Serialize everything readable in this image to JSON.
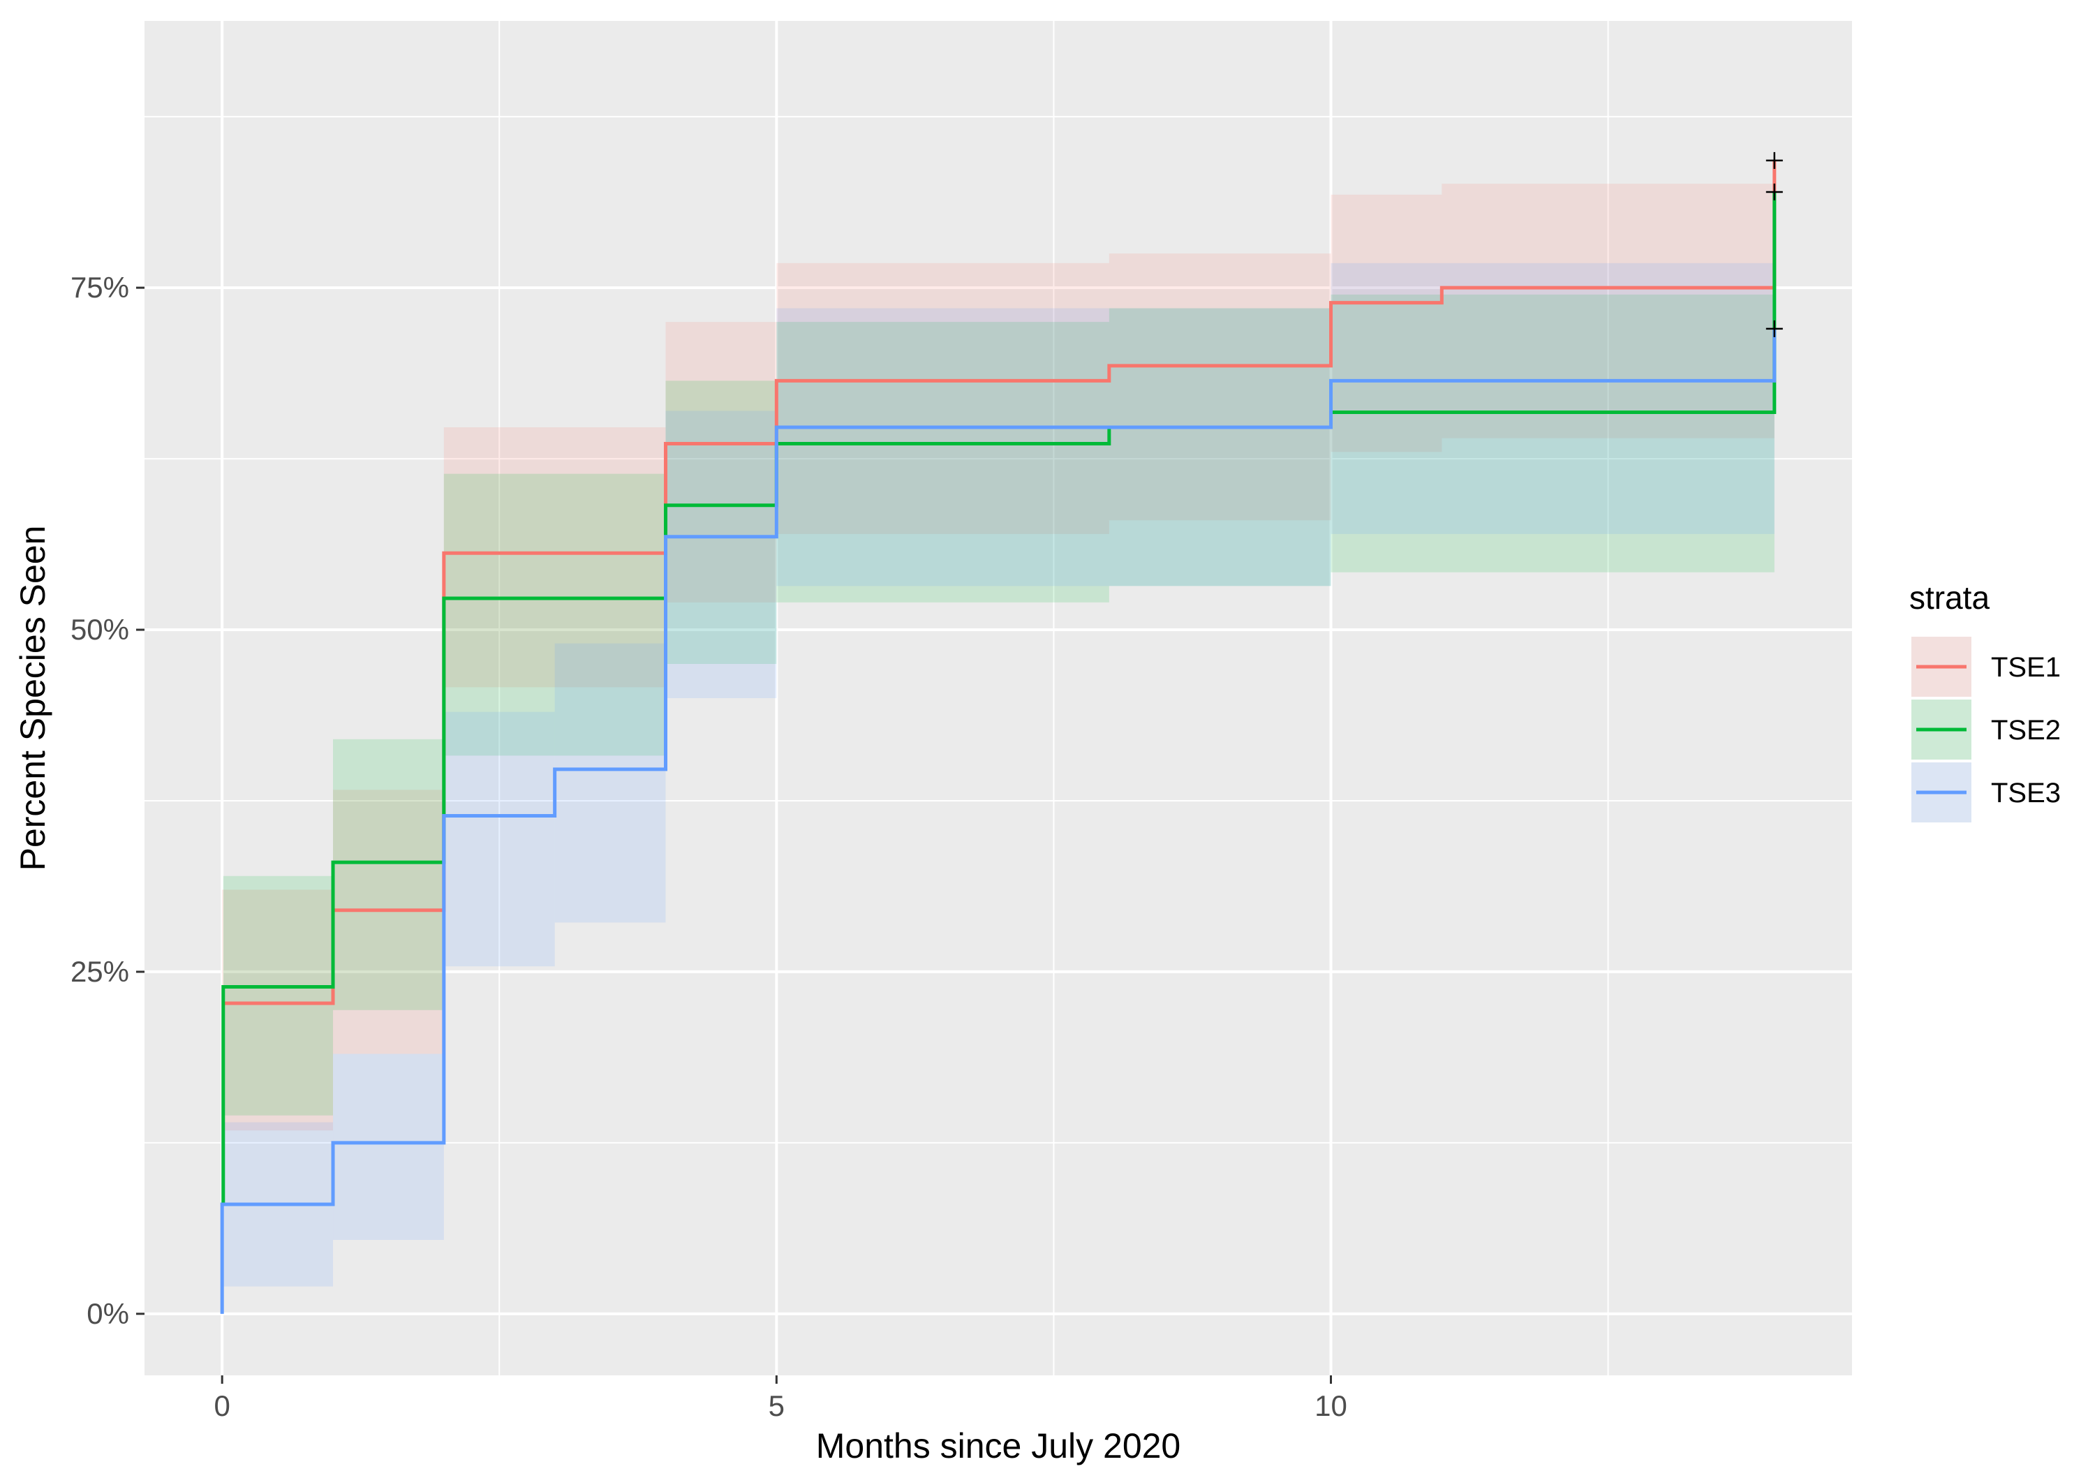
{
  "chart_data": {
    "type": "step",
    "title": "",
    "xlabel": "Months since July 2020",
    "ylabel": "Percent Species Seen",
    "xlim": [
      -0.7,
      14.7
    ],
    "ylim": [
      -0.045,
      0.945
    ],
    "x_ticks": [
      0,
      5,
      10
    ],
    "x_tick_labels": [
      "0",
      "5",
      "10"
    ],
    "x_minor_ticks": [
      2.5,
      7.5,
      12.5
    ],
    "y_ticks": [
      0,
      0.25,
      0.5,
      0.75
    ],
    "y_tick_labels": [
      "0%",
      "25%",
      "50%",
      "75%"
    ],
    "y_minor_ticks": [
      0.125,
      0.375,
      0.625,
      0.875
    ],
    "grid": true,
    "background": "#ebebeb",
    "legend": {
      "title": "strata",
      "position": "right"
    },
    "series": [
      {
        "name": "TSE1",
        "color": "#F8766D",
        "fill_opacity": 0.15,
        "steps": [
          {
            "x": 0,
            "y": 0.227,
            "lower": 0.134,
            "upper": 0.31
          },
          {
            "x": 1,
            "y": 0.295,
            "lower": 0.19,
            "upper": 0.383
          },
          {
            "x": 2,
            "y": 0.556,
            "lower": 0.458,
            "upper": 0.648
          },
          {
            "x": 4,
            "y": 0.636,
            "lower": 0.52,
            "upper": 0.725
          },
          {
            "x": 5,
            "y": 0.682,
            "lower": 0.57,
            "upper": 0.768
          },
          {
            "x": 8,
            "y": 0.693,
            "lower": 0.58,
            "upper": 0.775
          },
          {
            "x": 10,
            "y": 0.739,
            "lower": 0.63,
            "upper": 0.818
          },
          {
            "x": 11,
            "y": 0.75,
            "lower": 0.64,
            "upper": 0.826
          }
        ],
        "end_x": 14,
        "end_y": 0.843,
        "censor_y": 0.843
      },
      {
        "name": "TSE2",
        "color": "#00BA38",
        "fill_opacity": 0.15,
        "steps": [
          {
            "x": 0,
            "y": 0.08,
            "lower": 0.02,
            "upper": 0.15
          },
          {
            "x": 0.01,
            "y": 0.239,
            "lower": 0.145,
            "upper": 0.32
          },
          {
            "x": 1,
            "y": 0.33,
            "lower": 0.222,
            "upper": 0.42
          },
          {
            "x": 2,
            "y": 0.523,
            "lower": 0.408,
            "upper": 0.614
          },
          {
            "x": 4,
            "y": 0.591,
            "lower": 0.475,
            "upper": 0.682
          },
          {
            "x": 5,
            "y": 0.636,
            "lower": 0.52,
            "upper": 0.725
          },
          {
            "x": 8,
            "y": 0.648,
            "lower": 0.532,
            "upper": 0.735
          },
          {
            "x": 10,
            "y": 0.659,
            "lower": 0.542,
            "upper": 0.745
          }
        ],
        "end_x": 14,
        "end_y": 0.82,
        "censor_y": 0.82
      },
      {
        "name": "TSE3",
        "color": "#619CFF",
        "fill_opacity": 0.15,
        "steps": [
          {
            "x": 0,
            "y": 0.08,
            "lower": 0.02,
            "upper": 0.14
          },
          {
            "x": 1,
            "y": 0.125,
            "lower": 0.054,
            "upper": 0.19
          },
          {
            "x": 2,
            "y": 0.364,
            "lower": 0.254,
            "upper": 0.44
          },
          {
            "x": 3,
            "y": 0.398,
            "lower": 0.286,
            "upper": 0.49
          },
          {
            "x": 4,
            "y": 0.568,
            "lower": 0.45,
            "upper": 0.66
          },
          {
            "x": 5,
            "y": 0.648,
            "lower": 0.532,
            "upper": 0.735
          },
          {
            "x": 10,
            "y": 0.682,
            "lower": 0.57,
            "upper": 0.768
          }
        ],
        "start_y": 0,
        "end_x": 14,
        "end_y": 0.72,
        "censor_y": 0.72
      }
    ]
  }
}
